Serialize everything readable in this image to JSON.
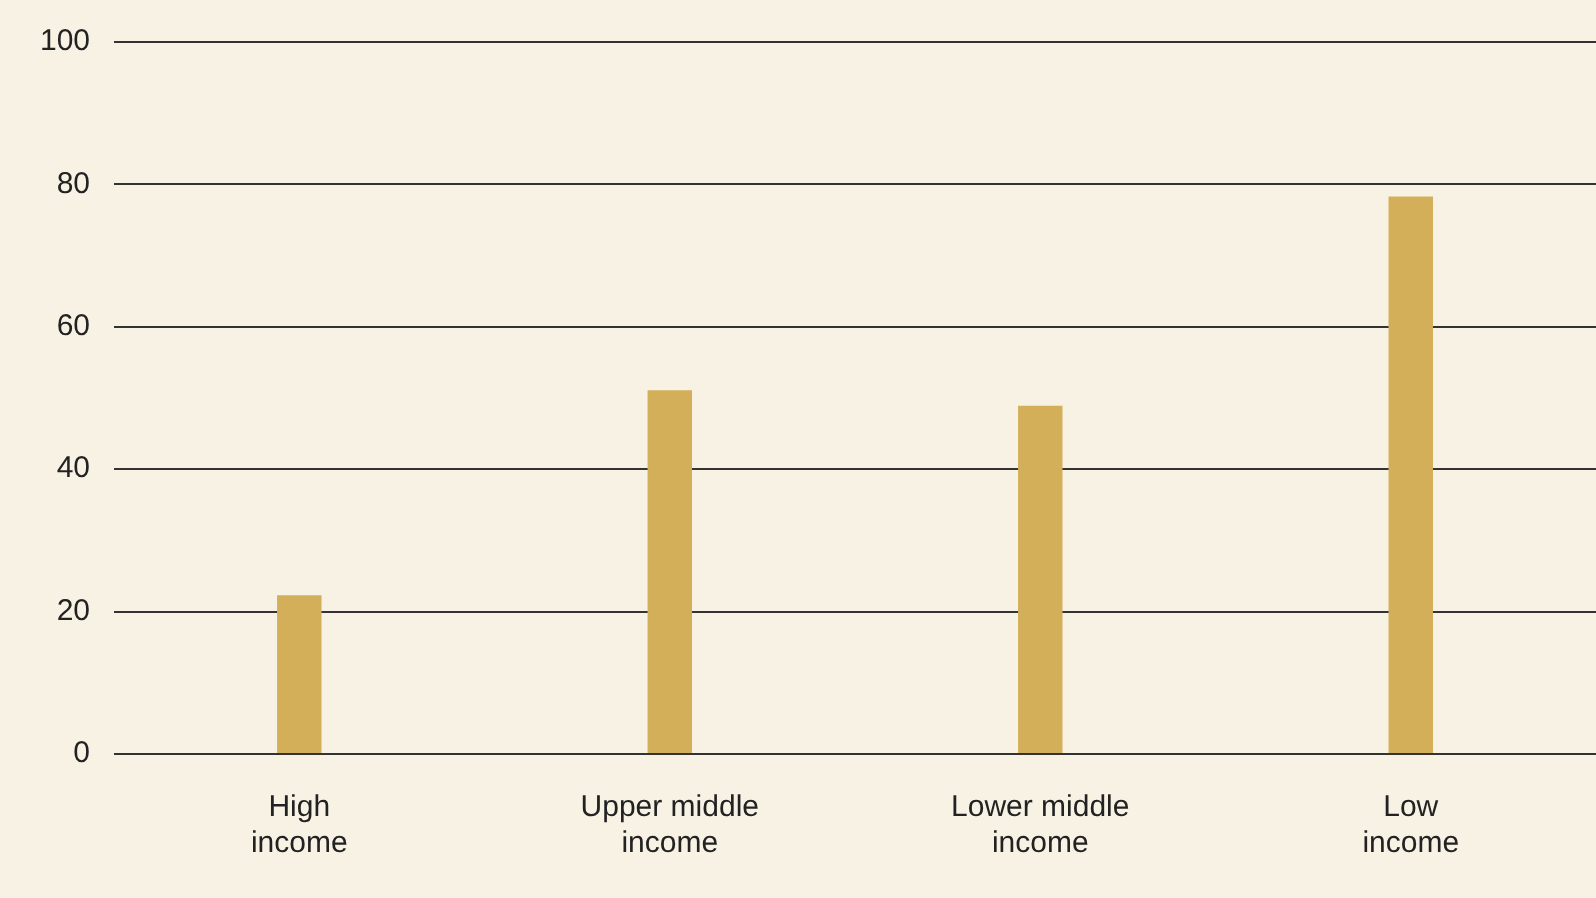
{
  "chart_data": {
    "type": "bar",
    "categories": [
      "High income",
      "Upper middle income",
      "Lower middle income",
      "Low income"
    ],
    "values": [
      22.3,
      51.1,
      48.9,
      78.3
    ],
    "color": "#d4af5a",
    "ylim": [
      0,
      100
    ],
    "yticks": [
      0,
      20,
      40,
      60,
      80,
      100
    ],
    "grid": "y",
    "legend": false
  }
}
